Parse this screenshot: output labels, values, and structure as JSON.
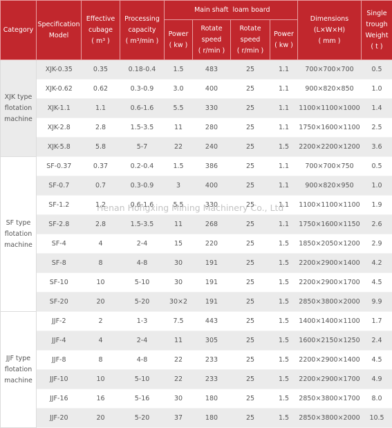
{
  "header": {
    "category": "Category",
    "model": [
      "Specification",
      "Model"
    ],
    "cubage": [
      "Effective",
      "cubage",
      "( m³ )"
    ],
    "capacity": [
      "Processing",
      "capacity",
      "( m³/min )"
    ],
    "main_shaft": "Main shaft",
    "loam_board": "loam board",
    "shaft_power": [
      "Power",
      "( kw )"
    ],
    "shaft_speed": [
      "Rotate",
      "speed",
      "( r/min )"
    ],
    "board_speed": [
      "Rotate",
      "speed",
      "( r/min )"
    ],
    "board_power": [
      "Power",
      "( kw )"
    ],
    "dimensions": [
      "Dimensions",
      "(L×W×H)",
      "( mm )"
    ],
    "weight": [
      "Single",
      "trough",
      "Weight",
      "( t )"
    ]
  },
  "groups": [
    {
      "category": [
        "XJK type",
        "flotation",
        "machine"
      ],
      "rows": [
        [
          "XJK-0.35",
          "0.35",
          "0.18-0.4",
          "1.5",
          "483",
          "25",
          "1.1",
          "700×700×700",
          "0.5"
        ],
        [
          "XJK-0.62",
          "0.62",
          "0.3-0.9",
          "3.0",
          "400",
          "25",
          "1.1",
          "900×820×850",
          "1.0"
        ],
        [
          "XJK-1.1",
          "1.1",
          "0.6-1.6",
          "5.5",
          "330",
          "25",
          "1.1",
          "1100×1100×1000",
          "1.4"
        ],
        [
          "XJK-2.8",
          "2.8",
          "1.5-3.5",
          "11",
          "280",
          "25",
          "1.1",
          "1750×1600×1100",
          "2.5"
        ],
        [
          "XJK-5.8",
          "5.8",
          "5-7",
          "22",
          "240",
          "25",
          "1.5",
          "2200×2200×1200",
          "3.6"
        ]
      ]
    },
    {
      "category": [
        "SF type",
        "flotation",
        "machine"
      ],
      "rows": [
        [
          "SF-0.37",
          "0.37",
          "0.2-0.4",
          "1.5",
          "386",
          "25",
          "1.1",
          "700×700×750",
          "0.5"
        ],
        [
          "SF-0.7",
          "0.7",
          "0.3-0.9",
          "3",
          "400",
          "25",
          "1.1",
          "900×820×950",
          "1.0"
        ],
        [
          "SF-1.2",
          "1.2",
          "0.6-1.6",
          "5.5",
          "330",
          "25",
          "1.1",
          "1100×1100×1100",
          "1.9"
        ],
        [
          "SF-2.8",
          "2.8",
          "1.5-3.5",
          "11",
          "268",
          "25",
          "1.1",
          "1750×1600×1150",
          "2.6"
        ],
        [
          "SF-4",
          "4",
          "2-4",
          "15",
          "220",
          "25",
          "1.5",
          "1850×2050×1200",
          "2.9"
        ],
        [
          "SF-8",
          "8",
          "4-8",
          "30",
          "191",
          "25",
          "1.5",
          "2200×2900×1400",
          "4.2"
        ],
        [
          "SF-10",
          "10",
          "5-10",
          "30",
          "191",
          "25",
          "1.5",
          "2200×2900×1700",
          "4.5"
        ],
        [
          "SF-20",
          "20",
          "5-20",
          "30×2",
          "191",
          "25",
          "1.5",
          "2850×3800×2000",
          "9.9"
        ]
      ]
    },
    {
      "category": [
        "JJF type",
        "flotation",
        "machine"
      ],
      "rows": [
        [
          "JJF-2",
          "2",
          "1-3",
          "7.5",
          "443",
          "25",
          "1.5",
          "1400×1400×1100",
          "1.7"
        ],
        [
          "JJF-4",
          "4",
          "2-4",
          "11",
          "305",
          "25",
          "1.5",
          "1600×2150×1250",
          "2.4"
        ],
        [
          "JJF-8",
          "8",
          "4-8",
          "22",
          "233",
          "25",
          "1.5",
          "2200×2900×1400",
          "4.5"
        ],
        [
          "JJF-10",
          "10",
          "5-10",
          "22",
          "233",
          "25",
          "1.5",
          "2200×2900×1700",
          "4.9"
        ],
        [
          "JJF-16",
          "16",
          "5-16",
          "30",
          "180",
          "25",
          "1.5",
          "2850×3800×1700",
          "8.0"
        ],
        [
          "JJF-20",
          "20",
          "5-20",
          "37",
          "180",
          "25",
          "1.5",
          "2850×3800×2000",
          "10.5"
        ]
      ]
    }
  ],
  "watermark": "Henan Hongxing Mining Machinery Co., Ltd"
}
